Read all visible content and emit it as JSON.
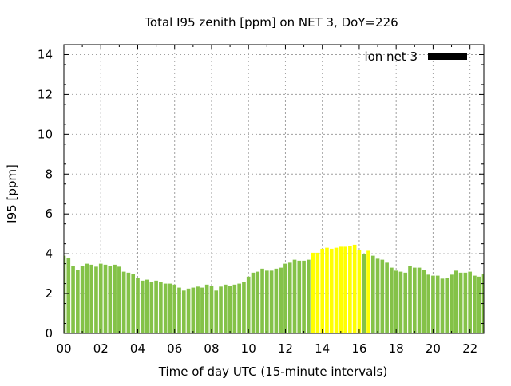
{
  "chart_data": {
    "type": "bar",
    "title": "Total I95 zenith [ppm] on NET 3, DoY=226",
    "xlabel": "Time of day UTC (15-minute intervals)",
    "ylabel": "I95 [ppm]",
    "xlim": [
      0,
      22.75
    ],
    "ylim": [
      0,
      14.5
    ],
    "x_ticks": [
      "00",
      "02",
      "04",
      "06",
      "08",
      "10",
      "12",
      "14",
      "16",
      "18",
      "20",
      "22"
    ],
    "y_ticks": [
      "0",
      "2",
      "4",
      "6",
      "8",
      "10",
      "12",
      "14"
    ],
    "grid": true,
    "legend": {
      "position": "top-right",
      "entries": [
        {
          "label": "ion net 3",
          "color": "#000000"
        }
      ]
    },
    "bar_width_hours": 0.2,
    "colors": {
      "normal": "#84c248",
      "highlight": "#ffff00"
    },
    "x": [
      0.0,
      0.25,
      0.5,
      0.75,
      1.0,
      1.25,
      1.5,
      1.75,
      2.0,
      2.25,
      2.5,
      2.75,
      3.0,
      3.25,
      3.5,
      3.75,
      4.0,
      4.25,
      4.5,
      4.75,
      5.0,
      5.25,
      5.5,
      5.75,
      6.0,
      6.25,
      6.5,
      6.75,
      7.0,
      7.25,
      7.5,
      7.75,
      8.0,
      8.25,
      8.5,
      8.75,
      9.0,
      9.25,
      9.5,
      9.75,
      10.0,
      10.25,
      10.5,
      10.75,
      11.0,
      11.25,
      11.5,
      11.75,
      12.0,
      12.25,
      12.5,
      12.75,
      13.0,
      13.25,
      13.5,
      13.75,
      14.0,
      14.25,
      14.5,
      14.75,
      15.0,
      15.25,
      15.5,
      15.75,
      16.0,
      16.25,
      16.5,
      16.75,
      17.0,
      17.25,
      17.5,
      17.75,
      18.0,
      18.25,
      18.5,
      18.75,
      19.0,
      19.25,
      19.5,
      19.75,
      20.0,
      20.25,
      20.5,
      20.75,
      21.0,
      21.25,
      21.5,
      21.75,
      22.0,
      22.25,
      22.5,
      22.75
    ],
    "values": [
      3.9,
      3.8,
      3.4,
      3.2,
      3.4,
      3.5,
      3.45,
      3.35,
      3.5,
      3.45,
      3.4,
      3.45,
      3.35,
      3.1,
      3.05,
      3.0,
      2.8,
      2.65,
      2.7,
      2.6,
      2.65,
      2.6,
      2.5,
      2.5,
      2.45,
      2.3,
      2.15,
      2.25,
      2.3,
      2.35,
      2.3,
      2.45,
      2.4,
      2.15,
      2.35,
      2.45,
      2.4,
      2.45,
      2.5,
      2.6,
      2.85,
      3.05,
      3.1,
      3.25,
      3.15,
      3.15,
      3.25,
      3.3,
      3.5,
      3.55,
      3.7,
      3.65,
      3.65,
      3.7,
      4.05,
      4.05,
      4.25,
      4.3,
      4.25,
      4.3,
      4.35,
      4.35,
      4.4,
      4.45,
      4.2,
      4.0,
      4.15,
      3.9,
      3.75,
      3.7,
      3.55,
      3.3,
      3.15,
      3.1,
      3.05,
      3.4,
      3.3,
      3.3,
      3.2,
      2.95,
      2.9,
      2.9,
      2.75,
      2.8,
      2.95,
      3.15,
      3.05,
      3.05,
      3.1,
      2.9,
      2.85,
      3.0
    ],
    "highlight": [
      false,
      false,
      false,
      false,
      false,
      false,
      false,
      false,
      false,
      false,
      false,
      false,
      false,
      false,
      false,
      false,
      false,
      false,
      false,
      false,
      false,
      false,
      false,
      false,
      false,
      false,
      false,
      false,
      false,
      false,
      false,
      false,
      false,
      false,
      false,
      false,
      false,
      false,
      false,
      false,
      false,
      false,
      false,
      false,
      false,
      false,
      false,
      false,
      false,
      false,
      false,
      false,
      false,
      false,
      true,
      true,
      true,
      true,
      true,
      true,
      true,
      true,
      true,
      true,
      true,
      false,
      true,
      false,
      false,
      false,
      false,
      false,
      false,
      false,
      false,
      false,
      false,
      false,
      false,
      false,
      false,
      false,
      false,
      false,
      false,
      false,
      false,
      false,
      false,
      false,
      false,
      false
    ]
  }
}
